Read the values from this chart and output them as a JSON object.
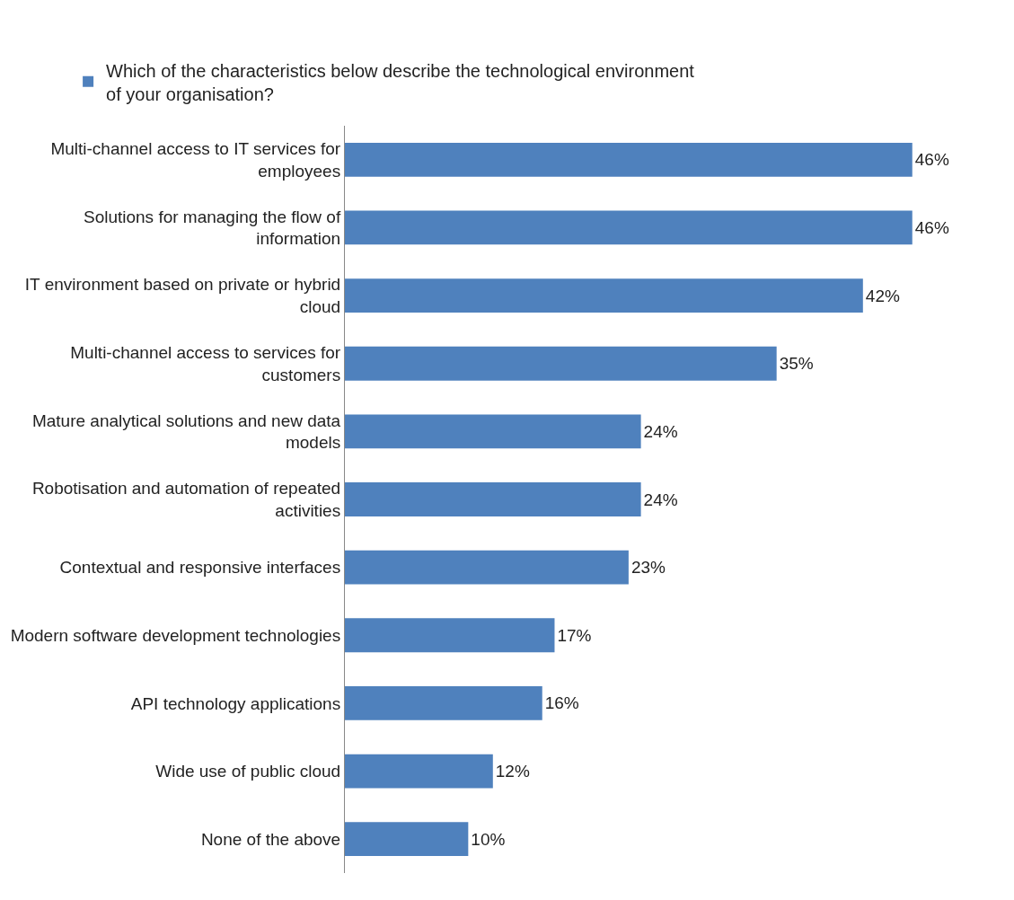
{
  "chart_data": {
    "type": "bar",
    "orientation": "horizontal",
    "legend": "top",
    "categories": [
      "Multi-channel access to IT services for employees",
      "Solutions for managing the flow of information",
      "IT environment based on private or hybrid cloud",
      "Multi-channel access to services for customers",
      "Mature analytical solutions and new data models",
      "Robotisation and automation of repeated activities",
      "Contextual and responsive interfaces",
      "Modern software development technologies",
      "API technology applications",
      "Wide use of public cloud",
      "None of the above"
    ],
    "series": [
      {
        "name": "Which of the characteristics below describe the technological environment of your organisation?",
        "color": "#4f81bd",
        "values": [
          46,
          46,
          42,
          35,
          24,
          24,
          23,
          17,
          16,
          12,
          10
        ],
        "value_labels": [
          "46%",
          "46%",
          "42%",
          "35%",
          "24%",
          "24%",
          "23%",
          "17%",
          "16%",
          "12%",
          "10%"
        ]
      }
    ]
  }
}
